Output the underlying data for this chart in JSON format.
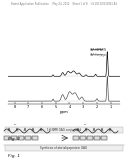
{
  "header_text": "Patent Application Publication     May 24, 2012    Sheet 1 of 8    US 2012/0130061 A1",
  "fig1_label": "Fig. 1",
  "fig1_caption": "Synthesis of abetalipoprotein GAG",
  "fig2_label": "Fig. 2",
  "fig2_caption": "1H NMR GAG conjugated",
  "background_color": "#ffffff",
  "nmr_bg": "#ffffff",
  "nmr_line1_color": "#111111",
  "nmr_line2_color": "#555555",
  "fig_label_color": "#111111",
  "caption_bg": "#eeeeee",
  "caption_border": "#aaaaaa",
  "header_color": "#777777",
  "nmr_x_label": "ppm",
  "nmr_xticks": [
    8,
    7,
    6,
    5,
    4,
    3,
    2,
    1
  ],
  "legend_text1": "HAP-HEPARIN",
  "legend_text2": "HAP-Conjugate"
}
